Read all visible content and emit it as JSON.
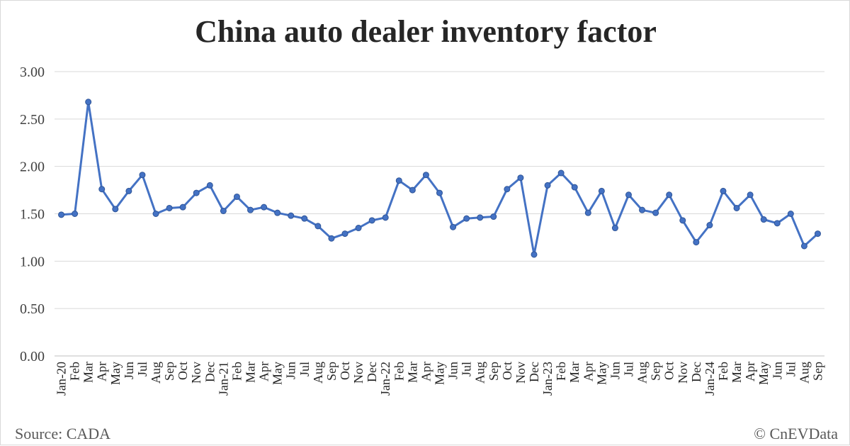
{
  "chart_data": {
    "type": "line",
    "title": "China auto dealer inventory factor",
    "xlabel": "",
    "ylabel": "",
    "ylim": [
      0,
      3
    ],
    "yticks": [
      "0.00",
      "0.50",
      "1.00",
      "1.50",
      "2.00",
      "2.50",
      "3.00"
    ],
    "grid": true,
    "legend": "none",
    "line_color": "#4472C4",
    "categories": [
      "Jan-20",
      "Feb",
      "Mar",
      "Apr",
      "May",
      "Jun",
      "Jul",
      "Aug",
      "Sep",
      "Oct",
      "Nov",
      "Dec",
      "Jan-21",
      "Feb",
      "Mar",
      "Apr",
      "May",
      "Jun",
      "Jul",
      "Aug",
      "Sep",
      "Oct",
      "Nov",
      "Dec",
      "Jan-22",
      "Feb",
      "Mar",
      "Apr",
      "May",
      "Jun",
      "Jul",
      "Aug",
      "Sep",
      "Oct",
      "Nov",
      "Dec",
      "Jan-23",
      "Feb",
      "Mar",
      "Apr",
      "May",
      "Jun",
      "Jul",
      "Aug",
      "Sep",
      "Oct",
      "Nov",
      "Dec",
      "Jan-24",
      "Feb",
      "Mar",
      "Apr",
      "May",
      "Jun",
      "Jul",
      "Aug",
      "Sep"
    ],
    "series": [
      {
        "values": [
          1.49,
          1.5,
          2.68,
          1.76,
          1.55,
          1.74,
          1.91,
          1.5,
          1.56,
          1.57,
          1.72,
          1.8,
          1.53,
          1.68,
          1.54,
          1.57,
          1.51,
          1.48,
          1.45,
          1.37,
          1.24,
          1.29,
          1.35,
          1.43,
          1.46,
          1.85,
          1.75,
          1.91,
          1.72,
          1.36,
          1.45,
          1.46,
          1.47,
          1.76,
          1.88,
          1.07,
          1.8,
          1.93,
          1.78,
          1.51,
          1.74,
          1.35,
          1.7,
          1.54,
          1.51,
          1.7,
          1.43,
          1.2,
          1.38,
          1.74,
          1.56,
          1.7,
          1.44,
          1.4,
          1.5,
          1.16,
          1.29
        ]
      }
    ]
  },
  "footer": {
    "source": "Source: CADA",
    "credit": "© CnEVData"
  }
}
